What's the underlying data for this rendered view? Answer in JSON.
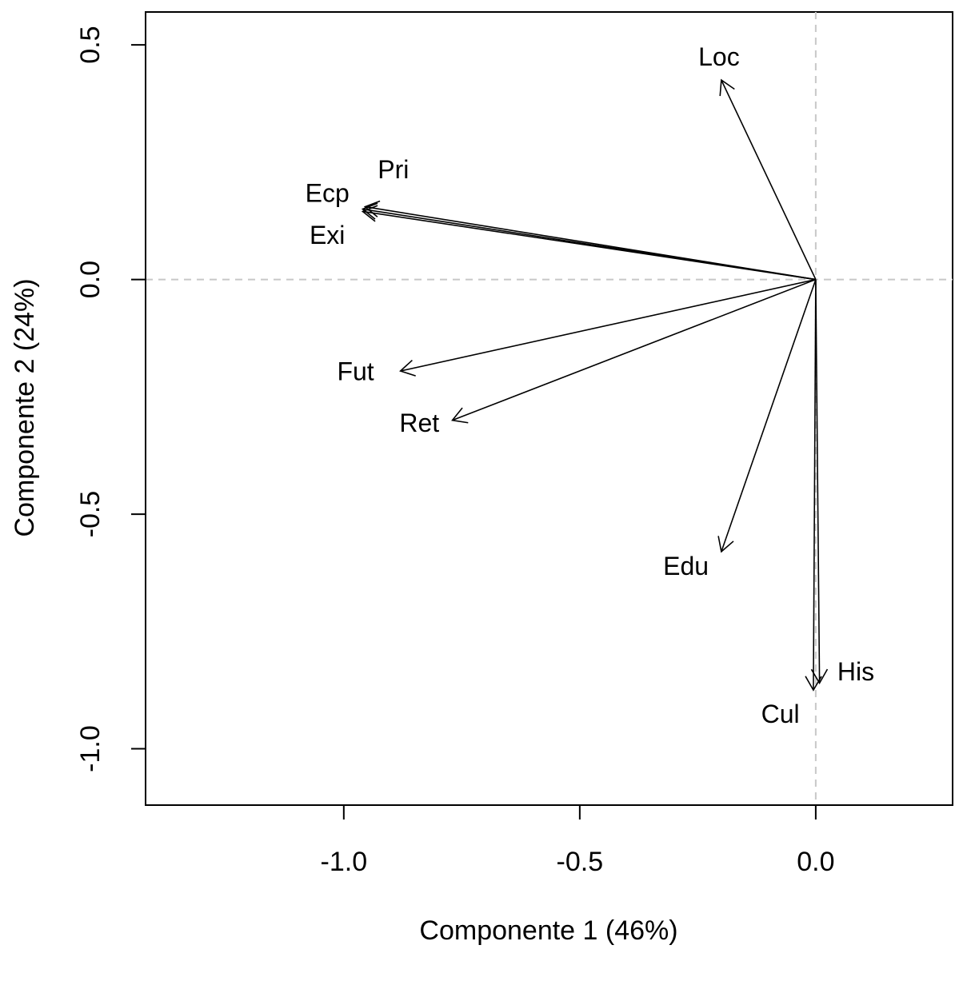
{
  "chart_data": {
    "type": "biplot-vectors",
    "xlabel": "Componente 1 (46%)",
    "ylabel": "Componente 2 (24%)",
    "xlim": [
      -1.42,
      0.29
    ],
    "ylim": [
      -1.12,
      0.57
    ],
    "xticks": [
      {
        "value": -1.0,
        "label": "-1.0"
      },
      {
        "value": -0.5,
        "label": "-0.5"
      },
      {
        "value": 0.0,
        "label": "0.0"
      }
    ],
    "yticks": [
      {
        "value": 0.5,
        "label": "0.5"
      },
      {
        "value": 0.0,
        "label": "0.0"
      },
      {
        "value": -0.5,
        "label": "-0.5"
      },
      {
        "value": -1.0,
        "label": "-1.0"
      }
    ],
    "reference_lines": {
      "x": 0,
      "y": 0,
      "style": "dashed",
      "color": "#c8c8c8"
    },
    "vectors": [
      {
        "name": "Loc",
        "x": -0.2,
        "y": 0.425,
        "label_x": -0.205,
        "label_y": 0.47
      },
      {
        "name": "Pri",
        "x": -0.955,
        "y": 0.155,
        "label_x": -0.895,
        "label_y": 0.23
      },
      {
        "name": "Ecp",
        "x": -0.96,
        "y": 0.15,
        "label_x": -1.035,
        "label_y": 0.18
      },
      {
        "name": "Exi",
        "x": -0.96,
        "y": 0.145,
        "label_x": -1.035,
        "label_y": 0.09
      },
      {
        "name": "Fut",
        "x": -0.88,
        "y": -0.195,
        "label_x": -0.975,
        "label_y": -0.2
      },
      {
        "name": "Ret",
        "x": -0.77,
        "y": -0.3,
        "label_x": -0.84,
        "label_y": -0.31
      },
      {
        "name": "Edu",
        "x": -0.2,
        "y": -0.58,
        "label_x": -0.275,
        "label_y": -0.615
      },
      {
        "name": "His",
        "x": 0.008,
        "y": -0.86,
        "label_x": 0.085,
        "label_y": -0.84
      },
      {
        "name": "Cul",
        "x": -0.005,
        "y": -0.875,
        "label_x": -0.075,
        "label_y": -0.93
      }
    ],
    "grid": false,
    "legend": "none"
  }
}
